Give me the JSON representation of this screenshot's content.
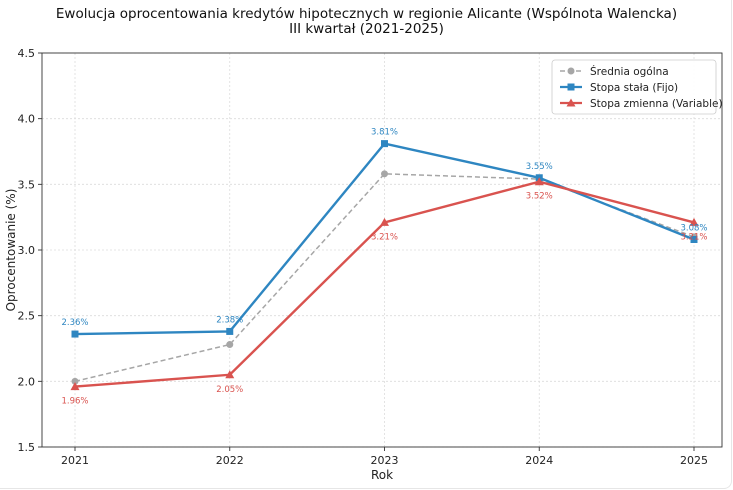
{
  "chart_data": {
    "type": "line",
    "title_line1": "Ewolucja oprocentowania kredytów hipotecznych w regionie Alicante (Wspólnota Walencka)",
    "title_line2": "III kwartał (2021-2025)",
    "xlabel": "Rok",
    "ylabel": "Oprocentowanie (%)",
    "x": [
      "2021",
      "2022",
      "2023",
      "2024",
      "2025"
    ],
    "yticks": [
      "1.5",
      "2.0",
      "2.5",
      "3.0",
      "3.5",
      "4.0",
      "4.5"
    ],
    "ylim": [
      1.5,
      4.5
    ],
    "grid": true,
    "legend_position": "top-right",
    "series": [
      {
        "name": "Średnia ogólna",
        "values": [
          2.0,
          2.28,
          3.58,
          3.54,
          3.1
        ],
        "color": "#a6a6a6",
        "dash": true,
        "marker": "circle",
        "labels": []
      },
      {
        "name": "Stopa stała (Fijo)",
        "values": [
          2.36,
          2.38,
          3.81,
          3.55,
          3.08
        ],
        "color": "#2e86c1",
        "dash": false,
        "marker": "square",
        "labels": [
          "2.36%",
          "2.38%",
          "3.81%",
          "3.55%",
          "3.08%"
        ]
      },
      {
        "name": "Stopa zmienna (Variable)",
        "values": [
          1.96,
          2.05,
          3.21,
          3.52,
          3.21
        ],
        "color": "#d9534f",
        "dash": false,
        "marker": "triangle",
        "labels": [
          "1.96%",
          "2.05%",
          "3.21%",
          "3.52%",
          "3.21%"
        ]
      }
    ]
  }
}
